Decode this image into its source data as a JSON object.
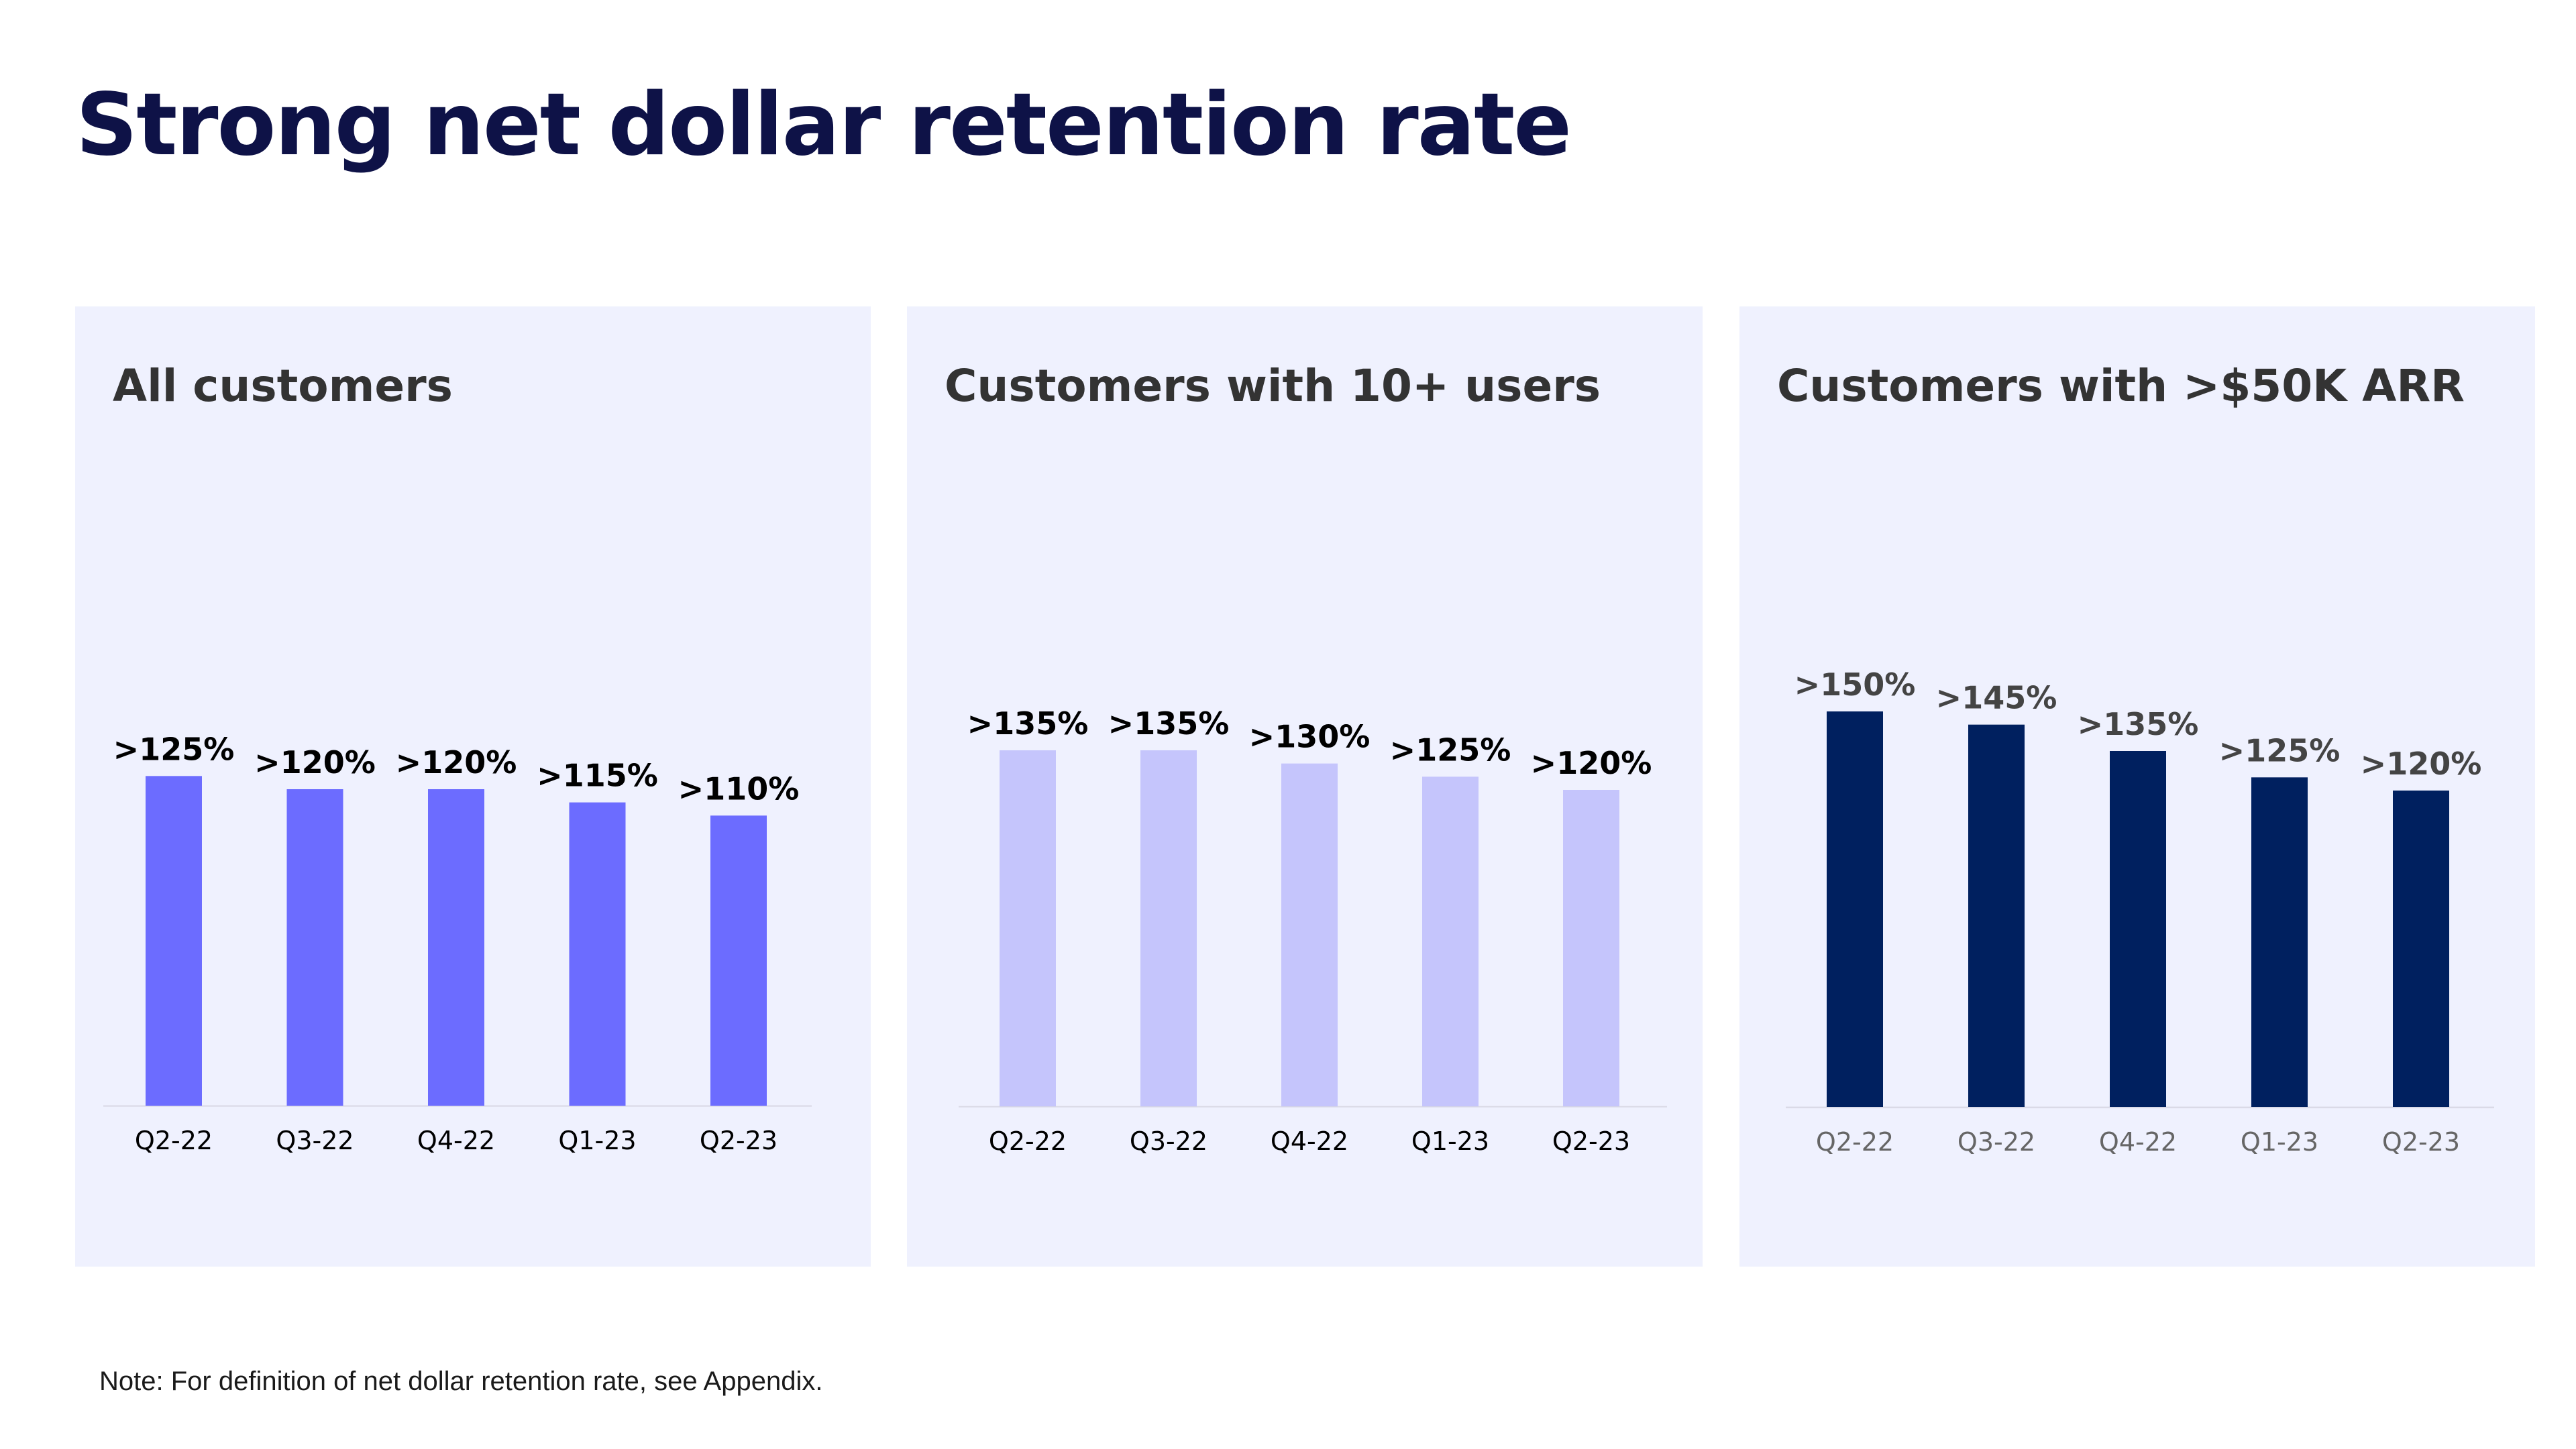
{
  "title": "Strong net dollar retention rate",
  "note": "Note: For definition of net dollar retention rate, see Appendix.",
  "chart_data": [
    {
      "type": "bar",
      "title": "All customers",
      "categories": [
        "Q2-22",
        "Q3-22",
        "Q4-22",
        "Q1-23",
        "Q2-23"
      ],
      "values": [
        125,
        120,
        120,
        115,
        110
      ],
      "data_labels": [
        ">125%",
        ">120%",
        ">120%",
        ">115%",
        ">110%"
      ],
      "color": "#6c6cff",
      "label_color": "#000000",
      "tick_color": "#000000",
      "ylim": [
        0,
        155
      ]
    },
    {
      "type": "bar",
      "title": "Customers with 10+ users",
      "categories": [
        "Q2-22",
        "Q3-22",
        "Q4-22",
        "Q1-23",
        "Q2-23"
      ],
      "values": [
        135,
        135,
        130,
        125,
        120
      ],
      "data_labels": [
        ">135%",
        ">135%",
        ">130%",
        ">125%",
        ">120%"
      ],
      "color": "#c5c5fc",
      "label_color": "#000000",
      "tick_color": "#000000",
      "ylim": [
        0,
        155
      ]
    },
    {
      "type": "bar",
      "title": "Customers with >$50K ARR",
      "categories": [
        "Q2-22",
        "Q3-22",
        "Q4-22",
        "Q1-23",
        "Q2-23"
      ],
      "values": [
        150,
        145,
        135,
        125,
        120
      ],
      "data_labels": [
        ">150%",
        ">145%",
        ">135%",
        ">125%",
        ">120%"
      ],
      "color": "#00205f",
      "label_color": "#444444",
      "tick_color": "#666666",
      "ylim": [
        0,
        155
      ]
    }
  ]
}
